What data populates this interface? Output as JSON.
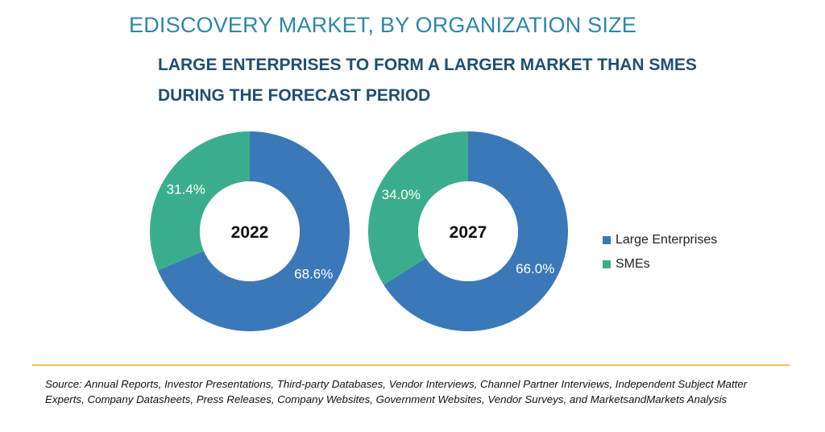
{
  "title": "EDISCOVERY MARKET, BY ORGANIZATION SIZE",
  "subtitle": "LARGE ENTERPRISES TO FORM A LARGER MARKET THAN SMES DURING THE FORECAST PERIOD",
  "colors": {
    "large": "#3a78b8",
    "smes": "#3aae8c",
    "title": "#2e86a8",
    "subtitle": "#1f4e73",
    "divider": "#f2c14e"
  },
  "legend": [
    {
      "label": "Large Enterprises",
      "color": "#3a78b8"
    },
    {
      "label": "SMEs",
      "color": "#3aae8c"
    }
  ],
  "source": "Source: Annual Reports, Investor Presentations, Third-party Databases, Vendor Interviews, Channel Partner Interviews, Independent Subject Matter Experts, Company Datasheets, Press Releases, Company Websites, Government Websites, Vendor Surveys, and MarketsandMarkets Analysis",
  "chart_data": [
    {
      "type": "pie",
      "center_label": "2022",
      "categories": [
        "Large Enterprises",
        "SMEs"
      ],
      "values": [
        68.6,
        31.4
      ],
      "labels": [
        "68.6%",
        "31.4%"
      ]
    },
    {
      "type": "pie",
      "center_label": "2027",
      "categories": [
        "Large Enterprises",
        "SMEs"
      ],
      "values": [
        66.0,
        34.0
      ],
      "labels": [
        "66.0%",
        "34.0%"
      ]
    }
  ]
}
